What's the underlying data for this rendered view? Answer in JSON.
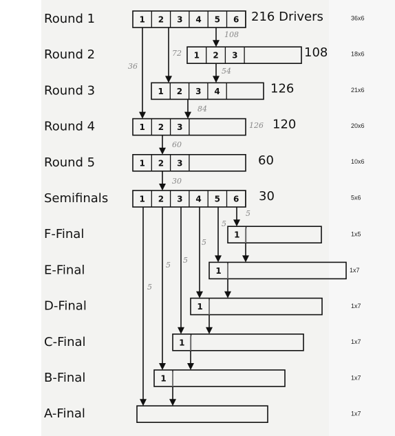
{
  "rows": [
    {
      "label": "Round 1",
      "cells": [
        "1",
        "2",
        "3",
        "4",
        "5",
        "6"
      ],
      "total": "216 Drivers",
      "format": "36x6"
    },
    {
      "label": "Round 2",
      "cells": [
        "1",
        "2",
        "3"
      ],
      "total": "108",
      "format": "18x6"
    },
    {
      "label": "Round 3",
      "cells": [
        "1",
        "2",
        "3",
        "4"
      ],
      "total": "126",
      "format": "21x6"
    },
    {
      "label": "Round 4",
      "cells": [
        "1",
        "2",
        "3"
      ],
      "total": "120",
      "format": "20x6"
    },
    {
      "label": "Round 5",
      "cells": [
        "1",
        "2",
        "3"
      ],
      "total": "60",
      "format": "10x6"
    },
    {
      "label": "Semifinals",
      "cells": [
        "1",
        "2",
        "3",
        "4",
        "5",
        "6"
      ],
      "total": "30",
      "format": "5x6"
    },
    {
      "label": "F-Final",
      "cells": [
        "1"
      ],
      "format": "1x5"
    },
    {
      "label": "E-Final",
      "cells": [
        "1"
      ],
      "format": "1x7"
    },
    {
      "label": "D-Final",
      "cells": [
        "1"
      ],
      "format": "1x7"
    },
    {
      "label": "C-Final",
      "cells": [
        "1"
      ],
      "format": "1x7"
    },
    {
      "label": "B-Final",
      "cells": [
        "1"
      ],
      "format": "1x7"
    },
    {
      "label": "A-Final",
      "cells": [],
      "format": "1x7"
    }
  ],
  "annotations": [
    "108",
    "72",
    "36",
    "54",
    "84",
    "126",
    "60",
    "30",
    "5",
    "5",
    "5",
    "5",
    "5",
    "5"
  ]
}
